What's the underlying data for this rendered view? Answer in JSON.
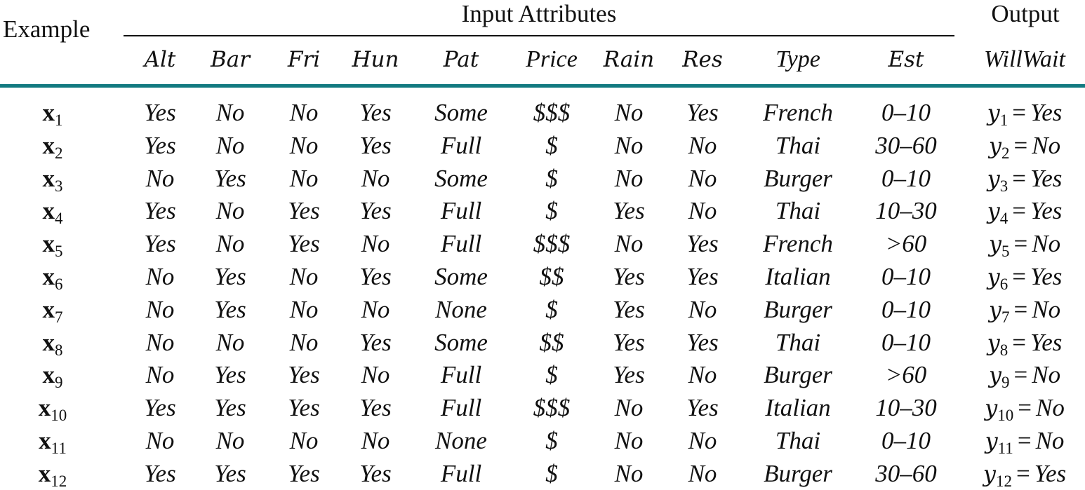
{
  "header": {
    "example": "Example",
    "input_group": "Input Attributes",
    "output_group": "Output",
    "attributes": [
      "Alt",
      "Bar",
      "Fri",
      "Hun",
      "Pat",
      "Price",
      "Rain",
      "Res",
      "Type",
      "Est"
    ],
    "output_attribute": "WillWait"
  },
  "rule_color": "#127a80",
  "rows": [
    {
      "ex": "x",
      "sub": "1",
      "vals": [
        "Yes",
        "No",
        "No",
        "Yes",
        "Some",
        "$$$",
        "No",
        "Yes",
        "French",
        "0–10"
      ],
      "y": "y",
      "ysub": "1",
      "out": "Yes"
    },
    {
      "ex": "x",
      "sub": "2",
      "vals": [
        "Yes",
        "No",
        "No",
        "Yes",
        "Full",
        "$",
        "No",
        "No",
        "Thai",
        "30–60"
      ],
      "y": "y",
      "ysub": "2",
      "out": "No"
    },
    {
      "ex": "x",
      "sub": "3",
      "vals": [
        "No",
        "Yes",
        "No",
        "No",
        "Some",
        "$",
        "No",
        "No",
        "Burger",
        "0–10"
      ],
      "y": "y",
      "ysub": "3",
      "out": "Yes"
    },
    {
      "ex": "x",
      "sub": "4",
      "vals": [
        "Yes",
        "No",
        "Yes",
        "Yes",
        "Full",
        "$",
        "Yes",
        "No",
        "Thai",
        "10–30"
      ],
      "y": "y",
      "ysub": "4",
      "out": "Yes"
    },
    {
      "ex": "x",
      "sub": "5",
      "vals": [
        "Yes",
        "No",
        "Yes",
        "No",
        "Full",
        "$$$",
        "No",
        "Yes",
        "French",
        ">60"
      ],
      "y": "y",
      "ysub": "5",
      "out": "No"
    },
    {
      "ex": "x",
      "sub": "6",
      "vals": [
        "No",
        "Yes",
        "No",
        "Yes",
        "Some",
        "$$",
        "Yes",
        "Yes",
        "Italian",
        "0–10"
      ],
      "y": "y",
      "ysub": "6",
      "out": "Yes"
    },
    {
      "ex": "x",
      "sub": "7",
      "vals": [
        "No",
        "Yes",
        "No",
        "No",
        "None",
        "$",
        "Yes",
        "No",
        "Burger",
        "0–10"
      ],
      "y": "y",
      "ysub": "7",
      "out": "No"
    },
    {
      "ex": "x",
      "sub": "8",
      "vals": [
        "No",
        "No",
        "No",
        "Yes",
        "Some",
        "$$",
        "Yes",
        "Yes",
        "Thai",
        "0–10"
      ],
      "y": "y",
      "ysub": "8",
      "out": "Yes"
    },
    {
      "ex": "x",
      "sub": "9",
      "vals": [
        "No",
        "Yes",
        "Yes",
        "No",
        "Full",
        "$",
        "Yes",
        "No",
        "Burger",
        ">60"
      ],
      "y": "y",
      "ysub": "9",
      "out": "No"
    },
    {
      "ex": "x",
      "sub": "10",
      "vals": [
        "Yes",
        "Yes",
        "Yes",
        "Yes",
        "Full",
        "$$$",
        "No",
        "Yes",
        "Italian",
        "10–30"
      ],
      "y": "y",
      "ysub": "10",
      "out": "No"
    },
    {
      "ex": "x",
      "sub": "11",
      "vals": [
        "No",
        "No",
        "No",
        "No",
        "None",
        "$",
        "No",
        "No",
        "Thai",
        "0–10"
      ],
      "y": "y",
      "ysub": "11",
      "out": "No"
    },
    {
      "ex": "x",
      "sub": "12",
      "vals": [
        "Yes",
        "Yes",
        "Yes",
        "Yes",
        "Full",
        "$",
        "No",
        "No",
        "Burger",
        "30–60"
      ],
      "y": "y",
      "ysub": "12",
      "out": "Yes"
    }
  ]
}
